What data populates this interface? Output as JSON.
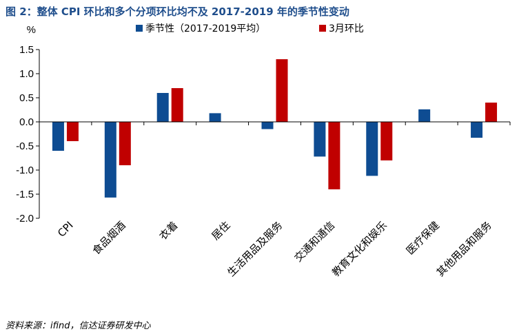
{
  "title": "图 2：整体 CPI 环比和多个分项环比均不及 2017-2019 年的季节性变动",
  "source": "资料来源：ifind，信达证券研发中心",
  "chart_data": {
    "type": "bar",
    "unit_label": "%",
    "categories": [
      "CPI",
      "食品烟酒",
      "衣着",
      "居住",
      "生活用品及服务",
      "交通和通信",
      "教育文化和娱乐",
      "医疗保健",
      "其他用品和服务"
    ],
    "series": [
      {
        "name": "季节性（2017-2019平均）",
        "color": "#0E4C92",
        "values": [
          -0.6,
          -1.57,
          0.6,
          0.18,
          -0.15,
          -0.72,
          -1.12,
          0.26,
          -0.33
        ]
      },
      {
        "name": "3月环比",
        "color": "#C00000",
        "values": [
          -0.4,
          -0.9,
          0.7,
          null,
          1.3,
          -1.4,
          -0.8,
          null,
          0.4
        ]
      }
    ],
    "ylim": [
      -2.0,
      1.5
    ],
    "yticks": [
      "1.5",
      "1.0",
      "0.5",
      "0.0",
      "-0.5",
      "-1.0",
      "-1.5",
      "-2.0"
    ],
    "legend_position": "top"
  }
}
